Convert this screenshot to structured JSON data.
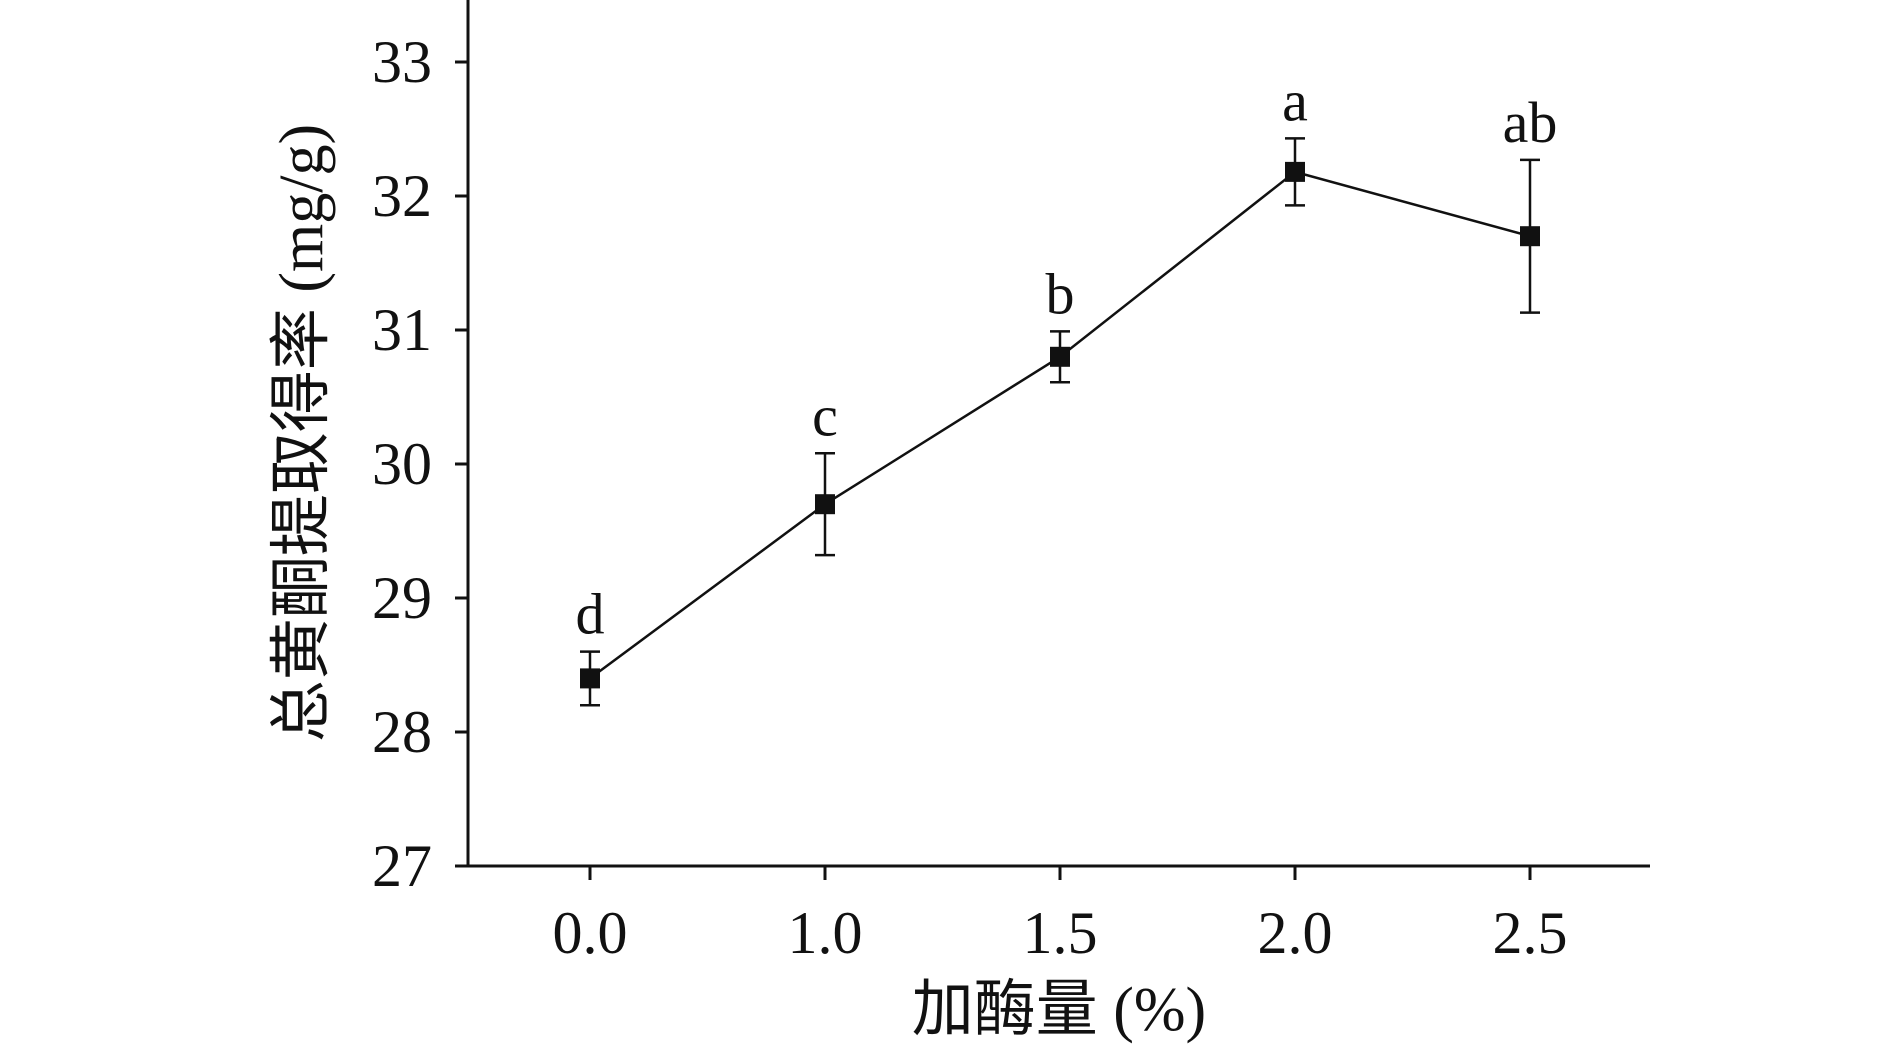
{
  "chart_data": {
    "type": "line",
    "xlabel": "加酶量 (%)",
    "ylabel": "总黄酮提取得率 (mg/g)",
    "x_tick_labels": [
      "0.0",
      "1.0",
      "1.5",
      "2.0",
      "2.5"
    ],
    "y_tick_labels": [
      "27",
      "28",
      "29",
      "30",
      "31",
      "32",
      "33"
    ],
    "ylim": [
      27,
      33.5
    ],
    "grid": false,
    "legend": "none",
    "marker": "square",
    "series": [
      {
        "x": [
          "0.0",
          "1.0",
          "1.5",
          "2.0",
          "2.5"
        ],
        "y": [
          28.4,
          29.7,
          30.8,
          32.18,
          31.7
        ],
        "error": [
          0.2,
          0.38,
          0.19,
          0.25,
          0.57
        ],
        "sig_labels": [
          "d",
          "c",
          "b",
          "a",
          "ab"
        ]
      }
    ],
    "colors": {
      "line": "#111111",
      "marker": "#111111"
    }
  }
}
